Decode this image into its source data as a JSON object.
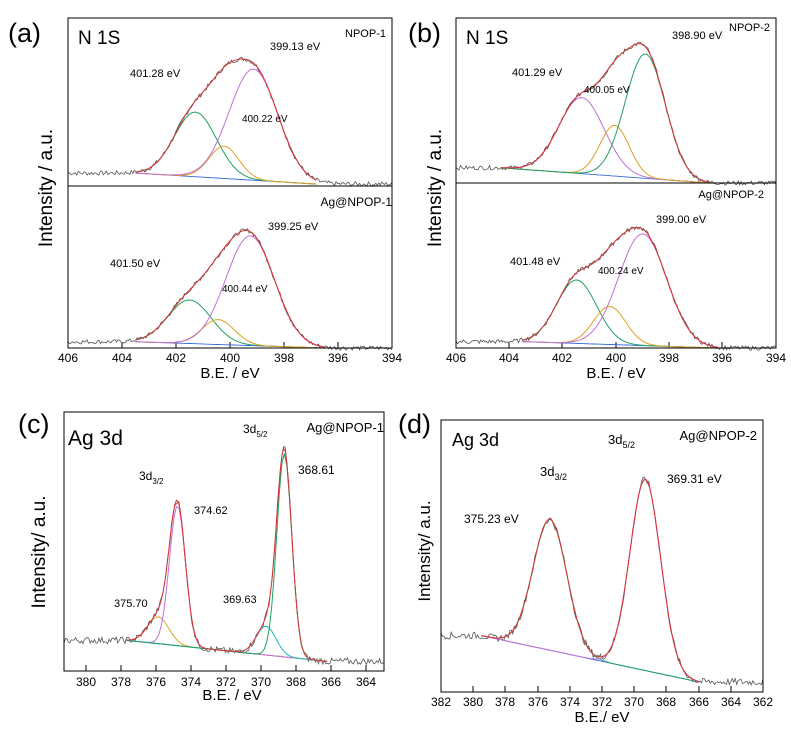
{
  "colors": {
    "raw": "#555555",
    "envelope": "#dd3333",
    "baseline": "#3366dd",
    "green": "#20a060",
    "orange": "#e0a020",
    "violet": "#c070d8",
    "cyan": "#20b8c0",
    "axis": "#000000"
  },
  "chart_data": [
    {
      "id": "a",
      "type": "line",
      "title": "(a)",
      "xlabel": "B.E. / eV",
      "ylabel": "Intensity / a.u.",
      "xlim": [
        406,
        394
      ],
      "xticks": [
        "406",
        "404",
        "402",
        "400",
        "398",
        "396",
        "394"
      ],
      "xtick_values": [
        406,
        404,
        402,
        400,
        398,
        396,
        394
      ],
      "subplots": [
        {
          "tag": "N 1S",
          "sample": "NPOP-1",
          "ylim": [
            0,
            1.3
          ],
          "base_start": 0.1,
          "base_end": 0.015,
          "range": [
            403.5,
            396.8
          ],
          "peaks": [
            {
              "center": 401.28,
              "height": 0.5,
              "width": 0.78,
              "color_key": "green",
              "label": "401.28 eV"
            },
            {
              "center": 400.22,
              "height": 0.25,
              "width": 0.55,
              "color_key": "orange",
              "label": "400.22 eV"
            },
            {
              "center": 399.13,
              "height": 0.86,
              "width": 0.9,
              "color_key": "violet",
              "label": "399.13 eV"
            }
          ]
        },
        {
          "tag": "",
          "sample": "Ag@NPOP-1",
          "ylim": [
            0,
            1.3
          ],
          "base_start": 0.05,
          "base_end": 0.0,
          "range": [
            403.5,
            396.5
          ],
          "peaks": [
            {
              "center": 401.5,
              "height": 0.35,
              "width": 0.8,
              "color_key": "green",
              "label": "401.50 eV"
            },
            {
              "center": 400.44,
              "height": 0.2,
              "width": 0.6,
              "color_key": "orange",
              "label": "400.44 eV"
            },
            {
              "center": 399.25,
              "height": 0.88,
              "width": 0.9,
              "color_key": "violet",
              "label": "399.25 eV"
            }
          ]
        }
      ]
    },
    {
      "id": "b",
      "type": "line",
      "title": "(b)",
      "xlabel": "B.E. / eV",
      "ylabel": "Intensity / a.u.",
      "xlim": [
        406,
        394
      ],
      "xticks": [
        "406",
        "404",
        "402",
        "400",
        "398",
        "396",
        "394"
      ],
      "xtick_values": [
        406,
        404,
        402,
        400,
        398,
        396,
        394
      ],
      "subplots": [
        {
          "tag": "N 1S",
          "sample": "NPOP-2",
          "ylim": [
            0,
            1.3
          ],
          "base_start": 0.12,
          "base_end": 0.0,
          "range": [
            404.3,
            396.5
          ],
          "peaks": [
            {
              "center": 401.29,
              "height": 0.6,
              "width": 0.85,
              "color_key": "violet",
              "label": "401.29 eV"
            },
            {
              "center": 400.05,
              "height": 0.4,
              "width": 0.55,
              "color_key": "orange",
              "label": "400.05 eV"
            },
            {
              "center": 398.9,
              "height": 0.98,
              "width": 0.75,
              "color_key": "green",
              "label": "398.90 eV"
            }
          ]
        },
        {
          "tag": "",
          "sample": "Ag@NPOP-2",
          "ylim": [
            0,
            1.3
          ],
          "base_start": 0.05,
          "base_end": 0.0,
          "range": [
            403.5,
            396.2
          ],
          "peaks": [
            {
              "center": 401.48,
              "height": 0.5,
              "width": 0.75,
              "color_key": "green",
              "label": "401.48 eV"
            },
            {
              "center": 400.24,
              "height": 0.3,
              "width": 0.6,
              "color_key": "orange",
              "label": "400.24 eV"
            },
            {
              "center": 399.0,
              "height": 0.88,
              "width": 0.9,
              "color_key": "violet",
              "label": "399.00 eV"
            }
          ]
        }
      ]
    },
    {
      "id": "c",
      "type": "line",
      "title": "(c)",
      "xlabel": "B.E. / eV",
      "ylabel": "Intensity/ a.u.",
      "xlim": [
        381,
        363
      ],
      "xticks": [
        "380",
        "378",
        "376",
        "374",
        "372",
        "370",
        "368",
        "366",
        "364"
      ],
      "xtick_values": [
        380,
        378,
        376,
        374,
        372,
        370,
        368,
        366,
        364
      ],
      "subplots": [
        {
          "tag": "Ag 3d",
          "sample": "Ag@NPOP-1",
          "ylim": [
            -0.05,
            1.3
          ],
          "base_start": 0.11,
          "base_end": 0.0,
          "range": [
            377.5,
            366.2
          ],
          "peaks": [
            {
              "center": 375.7,
              "height": 0.14,
              "width": 0.6,
              "color_key": "orange",
              "label": "375.70"
            },
            {
              "center": 374.62,
              "height": 0.73,
              "width": 0.45,
              "color_key": "violet",
              "label": "374.62"
            },
            {
              "center": 369.63,
              "height": 0.15,
              "width": 0.55,
              "color_key": "cyan",
              "label": "369.63"
            },
            {
              "center": 368.61,
              "height": 1.06,
              "width": 0.42,
              "color_key": "green",
              "label": "368.61"
            }
          ],
          "annotations": [
            {
              "text": "3d",
              "sub": "3/2"
            },
            {
              "text": "3d",
              "sub": "5/2"
            }
          ]
        }
      ]
    },
    {
      "id": "d",
      "type": "line",
      "title": "(d)",
      "xlabel": "B.E./ eV",
      "ylabel": "Intensity/ a.u.",
      "xlim": [
        382,
        362
      ],
      "xticks": [
        "382",
        "380",
        "378",
        "376",
        "374",
        "372",
        "370",
        "368",
        "366",
        "364",
        "362"
      ],
      "xtick_values": [
        382,
        380,
        378,
        376,
        374,
        372,
        370,
        368,
        366,
        364,
        362
      ],
      "subplots": [
        {
          "tag": "Ag 3d",
          "sample": "Ag@NPOP-2",
          "ylim": [
            -0.05,
            1.3
          ],
          "base_start": 0.23,
          "base_end": 0.0,
          "range": [
            379.5,
            366.0
          ],
          "peaks": [
            {
              "center": 375.23,
              "height": 0.65,
              "width": 1.05,
              "color_key": "green",
              "label": "375.23 eV"
            },
            {
              "center": 369.31,
              "height": 0.95,
              "width": 0.95,
              "color_key": "violet",
              "label": "369.31 eV"
            }
          ],
          "annotations": [
            {
              "text": "3d",
              "sub": "3/2"
            },
            {
              "text": "3d",
              "sub": "5/2"
            }
          ]
        }
      ]
    }
  ]
}
